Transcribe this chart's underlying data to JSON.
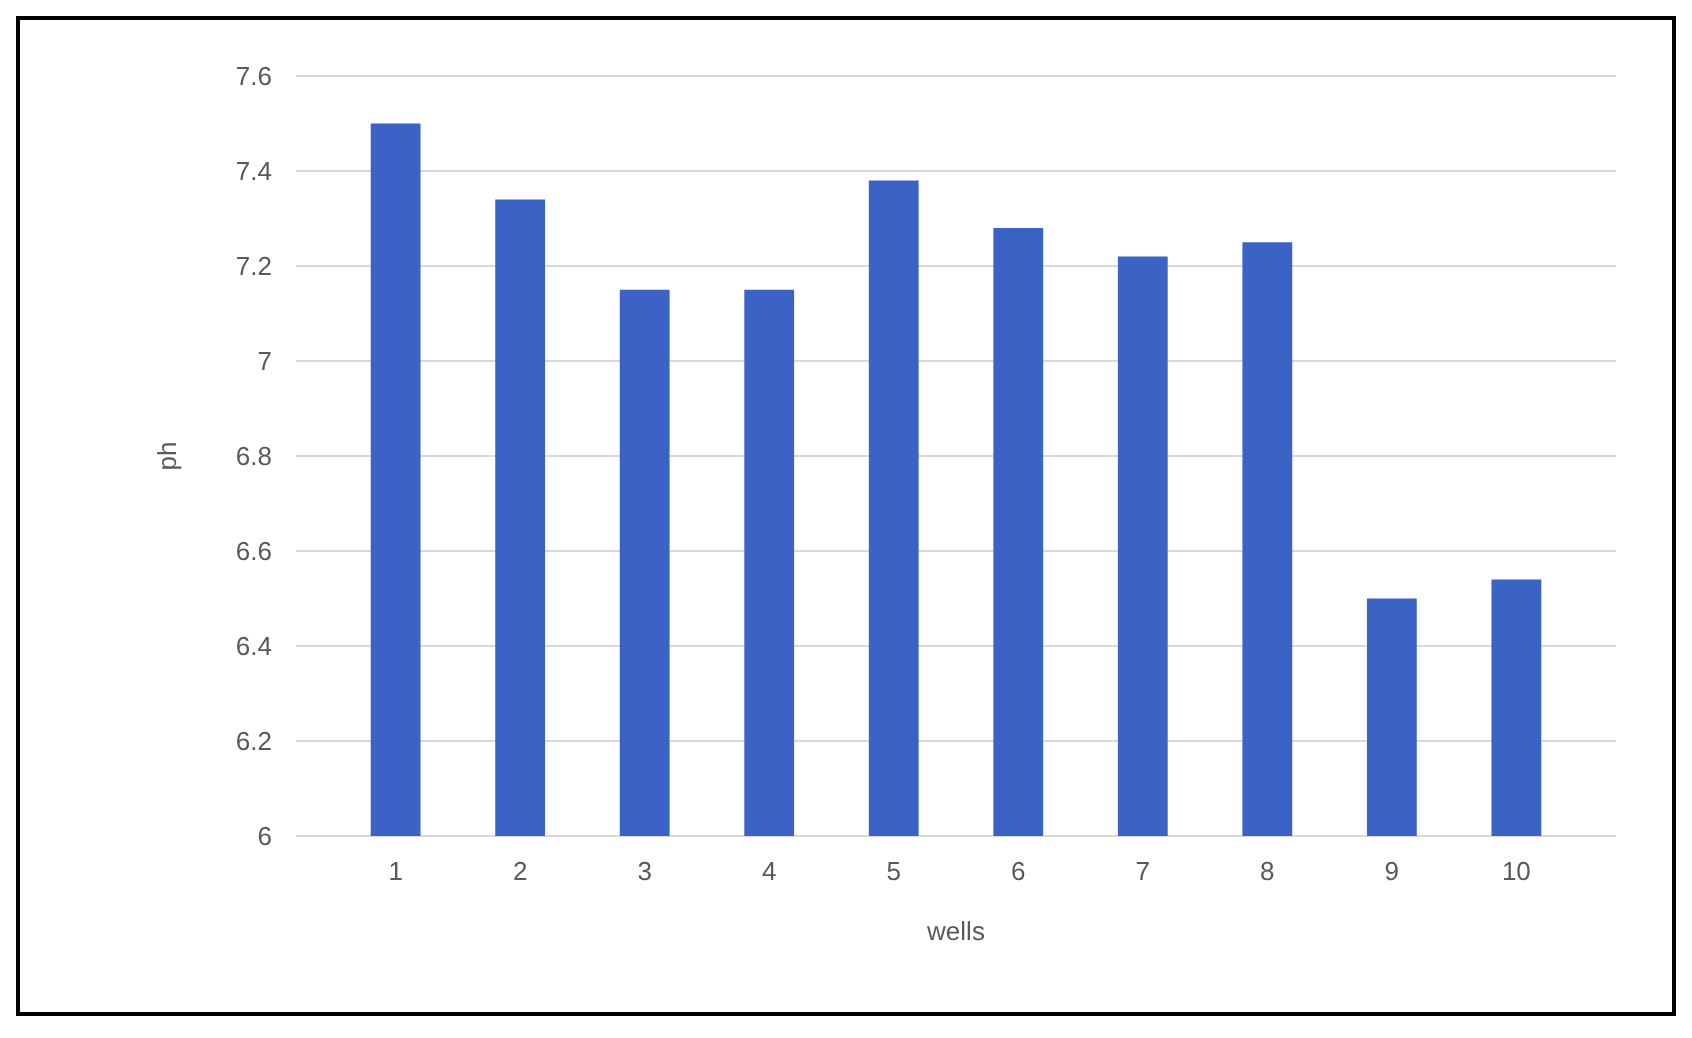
{
  "chart_data": {
    "type": "bar",
    "xlabel": "wells",
    "ylabel": "ph",
    "categories": [
      "1",
      "2",
      "3",
      "4",
      "5",
      "6",
      "7",
      "8",
      "9",
      "10"
    ],
    "values": [
      7.5,
      7.34,
      7.15,
      7.15,
      7.38,
      7.28,
      7.22,
      7.25,
      6.5,
      6.54
    ],
    "color": "#3b63c6",
    "ylim": [
      6,
      7.6
    ],
    "yticks": [
      6,
      6.2,
      6.4,
      6.6,
      6.8,
      7,
      7.2,
      7.4,
      7.6
    ],
    "grid": "y"
  }
}
